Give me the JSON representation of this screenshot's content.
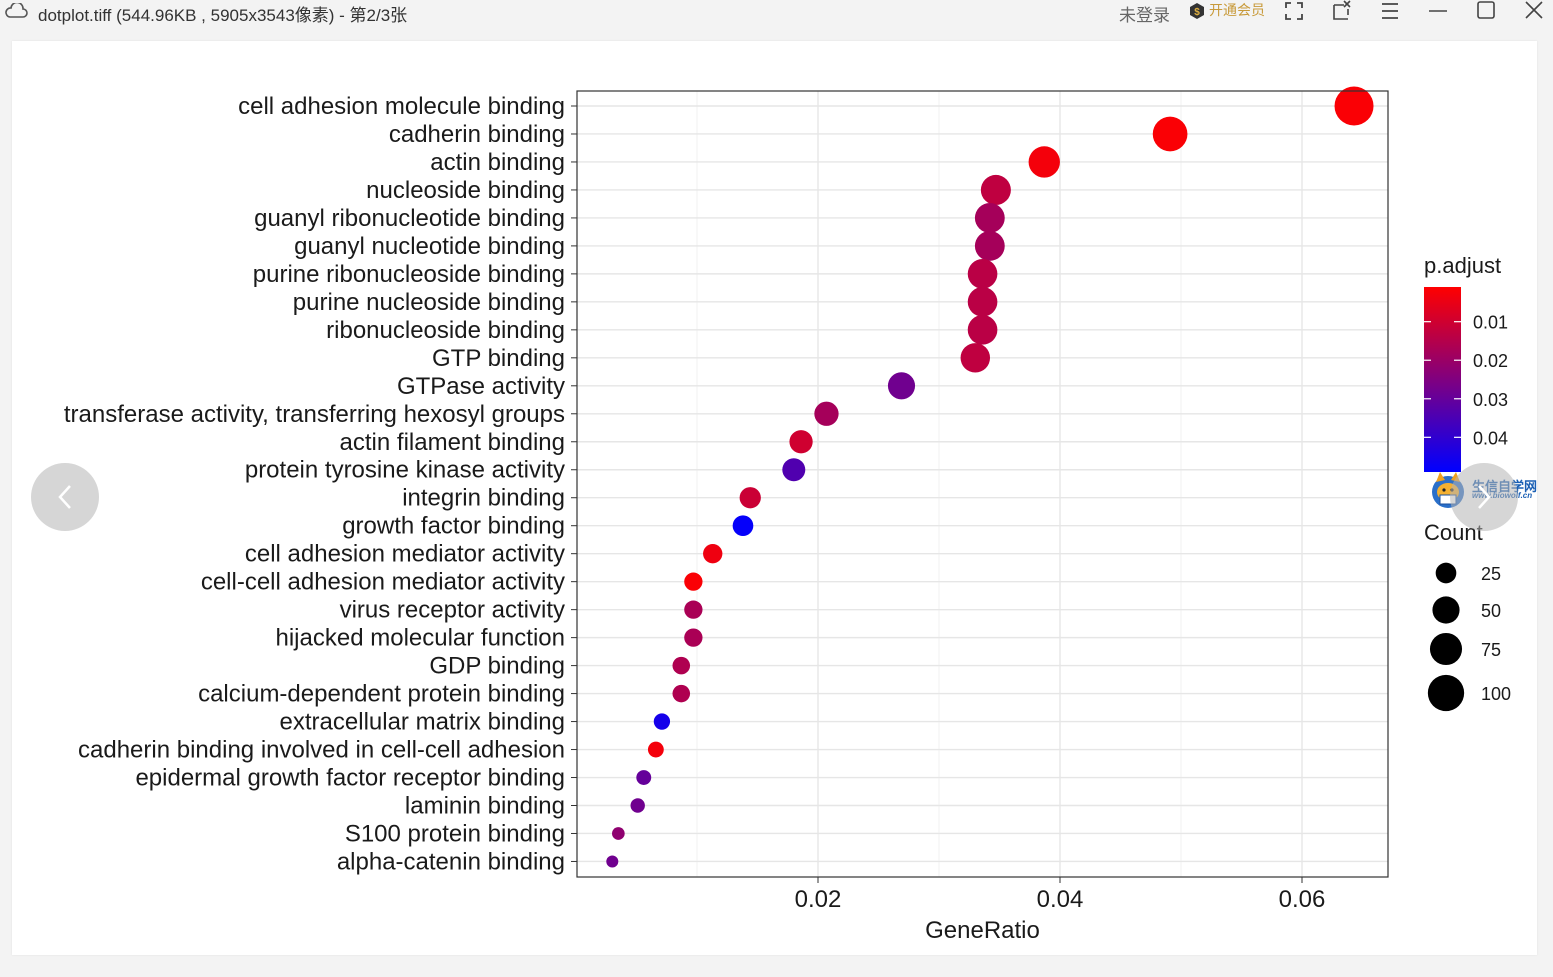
{
  "window": {
    "title": "dotplot.tiff (544.96KB , 5905x3543像素) - 第2/3张",
    "login": "未登录",
    "vip": "开通会员",
    "icons": [
      "cloud-icon",
      "fullscreen-icon",
      "crop-icon",
      "menu-icon",
      "minimize-icon",
      "maximize-icon",
      "close-icon"
    ]
  },
  "watermark": {
    "text_cn": "生信自学网",
    "text_en": "www.biowolf.cn"
  },
  "chart_data": {
    "type": "scatter",
    "xlabel": "GeneRatio",
    "ylabel": "",
    "xlim": [
      0,
      0.07
    ],
    "xticks": [
      0.02,
      0.04,
      0.06
    ],
    "xtick_labels": [
      "0.02",
      "0.04",
      "0.06"
    ],
    "grid": true,
    "categories": [
      "cell adhesion molecule binding",
      "cadherin binding",
      "actin binding",
      "nucleoside binding",
      "guanyl ribonucleotide binding",
      "guanyl nucleotide binding",
      "purine ribonucleoside binding",
      "purine nucleoside binding",
      "ribonucleoside binding",
      "GTP binding",
      "GTPase activity",
      "transferase activity, transferring hexosyl groups",
      "actin filament binding",
      "protein tyrosine kinase activity",
      "integrin binding",
      "growth factor binding",
      "cell adhesion mediator activity",
      "cell-cell adhesion mediator activity",
      "virus receptor activity",
      "hijacked molecular function",
      "GDP binding",
      "calcium-dependent protein binding",
      "extracellular matrix binding",
      "cadherin binding involved in cell-cell adhesion",
      "epidermal growth factor receptor binding",
      "laminin binding",
      "S100 protein binding",
      "alpha-catenin binding"
    ],
    "gene_ratio": [
      0.0643,
      0.0491,
      0.0387,
      0.0347,
      0.0342,
      0.0342,
      0.0336,
      0.0336,
      0.0336,
      0.033,
      0.0269,
      0.0207,
      0.0186,
      0.018,
      0.0144,
      0.0138,
      0.0113,
      0.0097,
      0.0097,
      0.0097,
      0.0087,
      0.0087,
      0.0071,
      0.0066,
      0.0056,
      0.0051,
      0.0035,
      0.003
    ],
    "p_adjust": [
      0.002,
      0.002,
      0.003,
      0.013,
      0.018,
      0.018,
      0.014,
      0.014,
      0.014,
      0.013,
      0.028,
      0.018,
      0.01,
      0.034,
      0.011,
      0.048,
      0.004,
      0.002,
      0.017,
      0.017,
      0.016,
      0.016,
      0.045,
      0.003,
      0.03,
      0.028,
      0.022,
      0.028
    ],
    "count": [
      118,
      90,
      71,
      64,
      63,
      63,
      62,
      62,
      62,
      61,
      50,
      38,
      34,
      33,
      27,
      25,
      21,
      18,
      18,
      18,
      16,
      16,
      13,
      12,
      10,
      9,
      6,
      5
    ],
    "color_legend": {
      "title": "p.adjust",
      "ticks": [
        0.01,
        0.02,
        0.03,
        0.04
      ],
      "tick_labels": [
        "0.01",
        "0.02",
        "0.03",
        "0.04"
      ],
      "low_color": "#ff0000",
      "high_color": "#0000ff",
      "range": [
        0.001,
        0.049
      ]
    },
    "size_legend": {
      "title": "Count",
      "values": [
        25,
        50,
        75,
        100
      ],
      "labels": [
        "25",
        "50",
        "75",
        "100"
      ]
    }
  }
}
